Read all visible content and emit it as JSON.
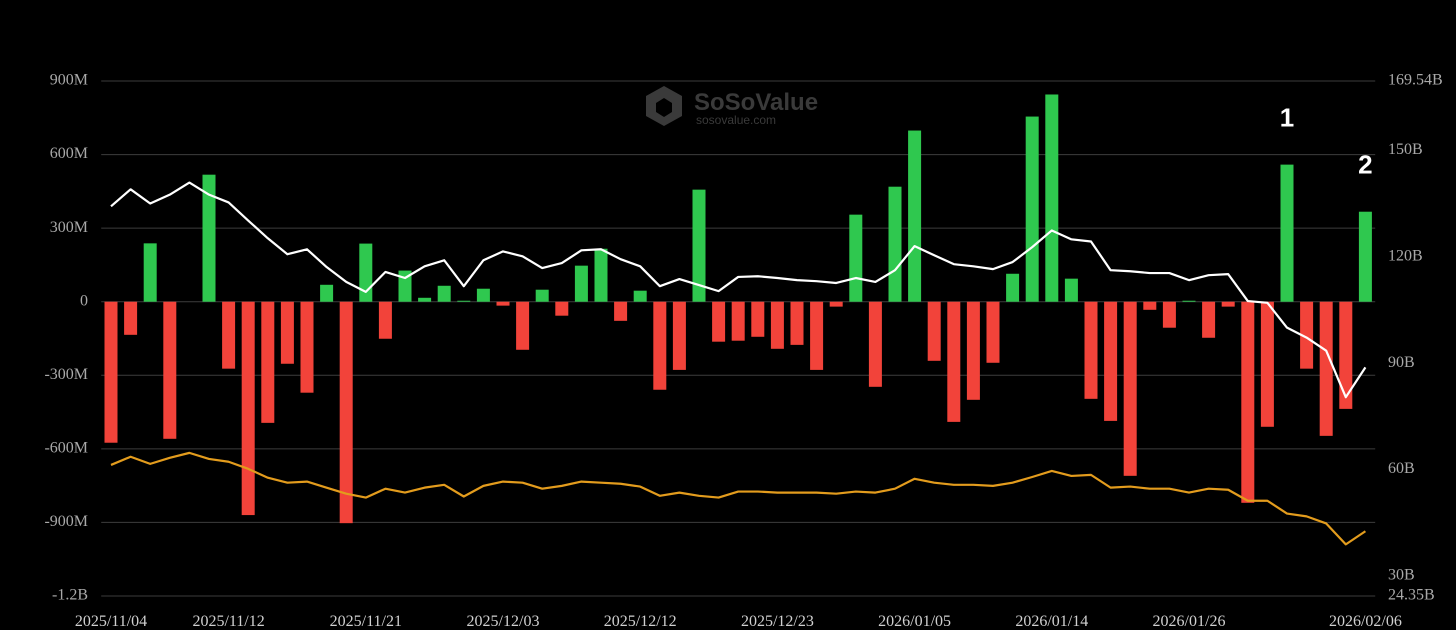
{
  "chart_data": {
    "type": "bar",
    "watermark": {
      "title": "SoSoValue",
      "subtitle": "sosovalue.com"
    },
    "annotations": [
      {
        "text": "1",
        "index": 60
      },
      {
        "text": "2",
        "index": 64
      }
    ],
    "categories": [
      "2025/11/04",
      null,
      null,
      null,
      null,
      null,
      "2025/11/12",
      null,
      null,
      null,
      null,
      null,
      null,
      "2025/11/21",
      null,
      null,
      null,
      null,
      null,
      null,
      "2025/12/03",
      null,
      null,
      null,
      null,
      null,
      null,
      "2025/12/12",
      null,
      null,
      null,
      null,
      null,
      null,
      "2025/12/23",
      null,
      null,
      null,
      null,
      null,
      null,
      "2026/01/05",
      null,
      null,
      null,
      null,
      null,
      null,
      "2026/01/14",
      null,
      null,
      null,
      null,
      null,
      null,
      "2026/01/26",
      null,
      null,
      null,
      null,
      null,
      null,
      null,
      null,
      "2026/02/06"
    ],
    "ylim": [
      -1200,
      900
    ],
    "yticks": [
      {
        "value": 900,
        "label": "900M"
      },
      {
        "value": 600,
        "label": "600M"
      },
      {
        "value": 300,
        "label": "300M"
      },
      0,
      {
        "value": -300,
        "label": "-300M"
      },
      {
        "value": -600,
        "label": "-600M"
      },
      {
        "value": -900,
        "label": "-900M"
      },
      {
        "value": -1200,
        "label": "-1.2B"
      }
    ],
    "y2lim": [
      24.35,
      169.54
    ],
    "y2ticks": [
      {
        "value": 169.54,
        "label": "169.54B"
      },
      {
        "value": 150,
        "label": "150B"
      },
      {
        "value": 120,
        "label": "120B"
      },
      {
        "value": 90,
        "label": "90B"
      },
      {
        "value": 60,
        "label": "60B"
      },
      {
        "value": 30,
        "label": "30B"
      },
      {
        "value": 24.35,
        "label": "24.35B"
      }
    ],
    "grid": true,
    "series": [
      {
        "type": "bar",
        "positive_color": "#2fc84f",
        "negative_color": "#f2433a",
        "values": [
          -575,
          -135,
          238,
          -559,
          0,
          518,
          -273,
          -870,
          -494,
          -253,
          -371,
          69,
          -903,
          237,
          -151,
          127,
          16,
          65,
          4,
          53,
          -16,
          -196,
          49,
          -57,
          147,
          216,
          -78,
          45,
          -359,
          -278,
          457,
          -163,
          -159,
          -143,
          -192,
          -176,
          -278,
          -20,
          355,
          -347,
          469,
          698,
          -241,
          -490,
          -400,
          -249,
          114,
          755,
          845,
          94,
          -396,
          -486,
          -710,
          -33,
          -106,
          4,
          -147,
          -20,
          -820,
          -510,
          559,
          -273,
          -547,
          -437,
          367
        ]
      },
      {
        "type": "line",
        "axis": "y2",
        "color": "#ffffff",
        "values": [
          134.2,
          139,
          135,
          137.5,
          140.9,
          137.5,
          135.3,
          130.2,
          125.2,
          120.7,
          122.1,
          117.1,
          112.9,
          110.1,
          115.7,
          114,
          117.3,
          119,
          111.7,
          119,
          121.5,
          120.1,
          116.8,
          118.2,
          121.8,
          122.1,
          119.3,
          117.3,
          111.7,
          113.7,
          112,
          110.3,
          114.3,
          114.5,
          114,
          113.4,
          113.1,
          112.6,
          114,
          112.9,
          116.2,
          123,
          120.4,
          117.9,
          117.3,
          116.5,
          118.5,
          122.7,
          127.4,
          124.9,
          124.3,
          116.2,
          115.9,
          115.4,
          115.4,
          113.4,
          114.8,
          115.1,
          107.5,
          107,
          100,
          97.2,
          93.5,
          80.4,
          88.8
        ]
      },
      {
        "type": "line",
        "axis": "y2",
        "color": "#e39c1d",
        "values": [
          61.3,
          63.6,
          61.6,
          63.3,
          64.7,
          63,
          62.2,
          60.2,
          57.7,
          56.3,
          56.6,
          54.9,
          53.2,
          52.1,
          54.6,
          53.5,
          54.9,
          55.7,
          52.4,
          55.4,
          56.6,
          56.3,
          54.6,
          55.4,
          56.6,
          56.3,
          56,
          55.2,
          52.6,
          53.5,
          52.6,
          52.1,
          53.8,
          53.8,
          53.5,
          53.5,
          53.5,
          53.2,
          53.8,
          53.5,
          54.6,
          57.4,
          56.3,
          55.7,
          55.7,
          55.4,
          56.3,
          57.9,
          59.6,
          58.2,
          58.5,
          54.9,
          55.2,
          54.6,
          54.6,
          53.5,
          54.6,
          54.3,
          51.2,
          51.2,
          47.6,
          46.8,
          44.8,
          38.9,
          42.6
        ]
      }
    ]
  }
}
